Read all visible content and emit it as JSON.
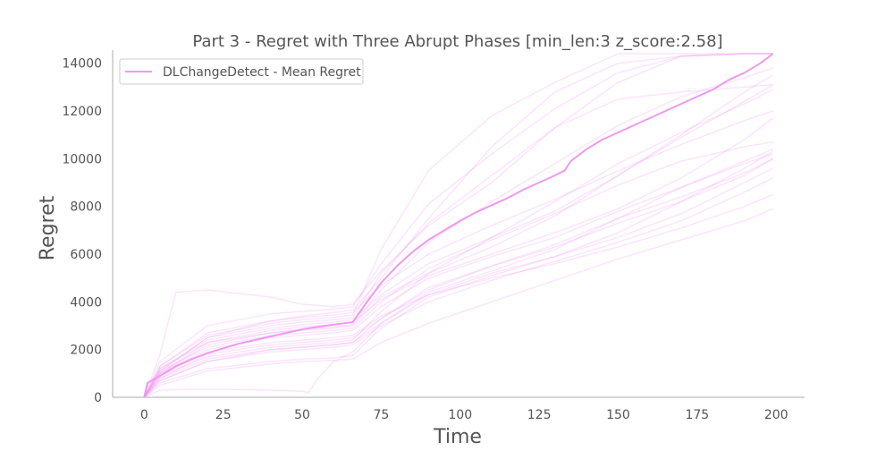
{
  "chart_data": {
    "type": "line",
    "title": "Part 3 - Regret with Three Abrupt Phases [min_len:3 z_score:2.58]",
    "xlabel": "Time",
    "ylabel": "Regret",
    "xlim": [
      -10,
      209
    ],
    "ylim": [
      0,
      14400
    ],
    "x_ticks": [
      0,
      25,
      50,
      75,
      100,
      125,
      150,
      175,
      200
    ],
    "y_ticks": [
      0,
      2000,
      4000,
      6000,
      8000,
      10000,
      12000,
      14000
    ],
    "grid": false,
    "legend_position": "top-left",
    "colors": {
      "mean": "#ee99ee",
      "runs": "#ee99ee",
      "axis": "#bbbbbb",
      "text": "#555555"
    },
    "series": [
      {
        "name": "DLChangeDetect - Mean Regret",
        "role": "mean",
        "x": [
          0,
          1,
          5,
          10,
          15,
          20,
          25,
          30,
          35,
          40,
          45,
          50,
          55,
          60,
          66,
          70,
          75,
          80,
          85,
          90,
          95,
          100,
          105,
          110,
          115,
          120,
          125,
          130,
          133,
          135,
          140,
          145,
          150,
          155,
          160,
          165,
          170,
          175,
          180,
          185,
          190,
          195,
          199
        ],
        "y": [
          0,
          600,
          900,
          1300,
          1600,
          1850,
          2050,
          2250,
          2400,
          2550,
          2700,
          2850,
          2950,
          3050,
          3150,
          3900,
          4800,
          5500,
          6100,
          6600,
          7000,
          7400,
          7750,
          8050,
          8350,
          8700,
          9000,
          9300,
          9500,
          9900,
          10400,
          10800,
          11100,
          11400,
          11700,
          12000,
          12300,
          12600,
          12900,
          13300,
          13600,
          14000,
          14400
        ]
      },
      {
        "role": "run",
        "x": [
          0,
          5,
          20,
          40,
          50,
          60,
          66,
          75,
          90,
          110,
          130,
          150,
          170,
          190,
          199
        ],
        "y": [
          0,
          1200,
          2300,
          2700,
          2800,
          2900,
          3000,
          4200,
          5200,
          6300,
          7600,
          9300,
          11000,
          12800,
          13500
        ]
      },
      {
        "role": "run",
        "x": [
          0,
          5,
          20,
          40,
          50,
          60,
          66,
          75,
          90,
          110,
          130,
          150,
          170,
          190,
          199
        ],
        "y": [
          0,
          1000,
          2000,
          2500,
          2600,
          2700,
          2800,
          3800,
          5000,
          5900,
          6700,
          7800,
          8800,
          9800,
          10200
        ]
      },
      {
        "role": "run",
        "x": [
          0,
          5,
          20,
          40,
          50,
          60,
          66,
          75,
          90,
          110,
          130,
          150,
          170,
          190,
          199
        ],
        "y": [
          0,
          1300,
          2600,
          3100,
          3250,
          3350,
          3450,
          6200,
          9500,
          11800,
          13200,
          14400,
          14600,
          14700,
          14800
        ]
      },
      {
        "role": "run",
        "x": [
          0,
          5,
          20,
          40,
          50,
          60,
          66,
          75,
          90,
          110,
          130,
          150,
          170,
          190,
          199
        ],
        "y": [
          0,
          700,
          1500,
          2000,
          2100,
          2200,
          2300,
          3300,
          4500,
          5500,
          6400,
          7500,
          8400,
          9400,
          10000
        ]
      },
      {
        "role": "run",
        "x": [
          0,
          5,
          20,
          40,
          50,
          60,
          66,
          75,
          90,
          110,
          130,
          150,
          170,
          190,
          199
        ],
        "y": [
          0,
          900,
          1700,
          2100,
          2200,
          2300,
          2400,
          3600,
          5200,
          6700,
          8200,
          9800,
          11100,
          12300,
          12900
        ]
      },
      {
        "role": "run",
        "x": [
          0,
          5,
          10,
          20,
          40,
          50,
          60,
          66,
          75,
          90,
          110,
          130,
          150,
          170,
          190,
          199
        ],
        "y": [
          0,
          1800,
          4400,
          4500,
          4200,
          3900,
          3800,
          3900,
          5300,
          7200,
          9000,
          11300,
          12500,
          12800,
          13000,
          13100
        ]
      },
      {
        "role": "run",
        "x": [
          0,
          5,
          20,
          40,
          50,
          60,
          66,
          75,
          90,
          110,
          130,
          150,
          170,
          190,
          199
        ],
        "y": [
          0,
          1100,
          2500,
          3200,
          3400,
          3550,
          3650,
          5000,
          7500,
          10500,
          12800,
          14000,
          14300,
          14400,
          14400
        ]
      },
      {
        "role": "run",
        "x": [
          0,
          5,
          20,
          40,
          50,
          60,
          66,
          75,
          90,
          110,
          130,
          150,
          170,
          190,
          199
        ],
        "y": [
          0,
          800,
          1600,
          2000,
          2100,
          2200,
          2300,
          3100,
          4300,
          5200,
          5900,
          6700,
          7700,
          9000,
          9600
        ]
      },
      {
        "role": "run",
        "x": [
          0,
          5,
          20,
          40,
          50,
          60,
          66,
          75,
          90,
          110,
          130,
          150,
          170,
          190,
          199
        ],
        "y": [
          0,
          600,
          1200,
          1500,
          1600,
          1650,
          1750,
          2900,
          4200,
          5100,
          5900,
          6900,
          8200,
          9600,
          10300
        ]
      },
      {
        "role": "run",
        "x": [
          0,
          5,
          20,
          40,
          50,
          60,
          66,
          75,
          90,
          110,
          130,
          150,
          170,
          190,
          199
        ],
        "y": [
          0,
          1000,
          2200,
          2700,
          2850,
          2950,
          3050,
          4500,
          6500,
          8200,
          9800,
          11400,
          12600,
          13400,
          13800
        ]
      },
      {
        "role": "run",
        "x": [
          0,
          5,
          20,
          40,
          50,
          60,
          66,
          75,
          90,
          110,
          130,
          150,
          170,
          190,
          199
        ],
        "y": [
          0,
          1200,
          2400,
          2900,
          3050,
          3150,
          3250,
          4300,
          5600,
          6700,
          7800,
          9300,
          10900,
          12400,
          13100
        ]
      },
      {
        "role": "run",
        "x": [
          0,
          5,
          20,
          40,
          50,
          60,
          66,
          75,
          90,
          110,
          130,
          150,
          170,
          190,
          199
        ],
        "y": [
          0,
          900,
          1900,
          2300,
          2400,
          2500,
          2600,
          3400,
          4300,
          5000,
          5600,
          6300,
          7100,
          8000,
          8500
        ]
      },
      {
        "role": "run",
        "x": [
          0,
          5,
          20,
          40,
          50,
          60,
          66,
          75,
          90,
          110,
          130,
          150,
          170,
          190,
          199
        ],
        "y": [
          0,
          500,
          1100,
          1400,
          1500,
          1550,
          1600,
          2300,
          3100,
          4000,
          4900,
          5800,
          6600,
          7400,
          7900
        ]
      },
      {
        "role": "run",
        "x": [
          0,
          5,
          20,
          40,
          50,
          60,
          66,
          75,
          90,
          110,
          130,
          150,
          170,
          190,
          199
        ],
        "y": [
          0,
          1100,
          2100,
          2600,
          2700,
          2800,
          2900,
          4000,
          5400,
          6600,
          7700,
          8900,
          9900,
          10500,
          10700
        ]
      },
      {
        "role": "run",
        "x": [
          0,
          5,
          20,
          40,
          50,
          60,
          66,
          75,
          90,
          110,
          130,
          150,
          170,
          190,
          199
        ],
        "y": [
          0,
          1500,
          3000,
          3500,
          3600,
          3700,
          3800,
          5600,
          8100,
          10200,
          12100,
          13600,
          14300,
          14500,
          14500
        ]
      },
      {
        "role": "run",
        "x": [
          0,
          5,
          20,
          40,
          50,
          60,
          66,
          75,
          90,
          110,
          130,
          150,
          170,
          190,
          199
        ],
        "y": [
          0,
          800,
          1800,
          2200,
          2300,
          2400,
          2500,
          3300,
          4600,
          5500,
          6300,
          7300,
          8200,
          9300,
          10000
        ]
      },
      {
        "role": "run",
        "x": [
          0,
          5,
          20,
          40,
          50,
          60,
          66,
          75,
          90,
          110,
          130,
          150,
          170,
          190,
          199
        ],
        "y": [
          0,
          1000,
          2300,
          2800,
          2950,
          3050,
          3150,
          4100,
          5100,
          6000,
          6900,
          7900,
          9200,
          10800,
          11700
        ]
      },
      {
        "role": "run",
        "x": [
          0,
          5,
          20,
          40,
          50,
          60,
          66,
          75,
          90,
          110,
          130,
          150,
          170,
          190,
          199
        ],
        "y": [
          0,
          1300,
          2700,
          3200,
          3350,
          3450,
          3550,
          4700,
          6000,
          7200,
          8300,
          9500,
          10600,
          11600,
          12000
        ]
      },
      {
        "role": "run",
        "x": [
          0,
          5,
          20,
          40,
          50,
          52,
          55,
          60,
          66,
          75,
          90,
          110,
          130,
          150,
          170,
          190,
          199
        ],
        "y": [
          0,
          300,
          350,
          300,
          250,
          200,
          800,
          1500,
          1900,
          3100,
          4400,
          5300,
          6200,
          7500,
          8800,
          9900,
          10400
        ]
      },
      {
        "role": "run",
        "x": [
          0,
          5,
          20,
          40,
          50,
          60,
          66,
          75,
          90,
          110,
          130,
          150,
          170,
          190,
          199
        ],
        "y": [
          0,
          1100,
          2500,
          3000,
          3150,
          3250,
          3350,
          5200,
          7300,
          9300,
          11300,
          13200,
          14300,
          14500,
          14500
        ]
      },
      {
        "role": "run",
        "x": [
          0,
          5,
          20,
          40,
          50,
          60,
          66,
          75,
          90,
          110,
          130,
          150,
          170,
          190,
          199
        ],
        "y": [
          0,
          700,
          1500,
          1900,
          2000,
          2100,
          2200,
          3000,
          4000,
          4900,
          5700,
          6500,
          7400,
          8600,
          9200
        ]
      }
    ]
  }
}
